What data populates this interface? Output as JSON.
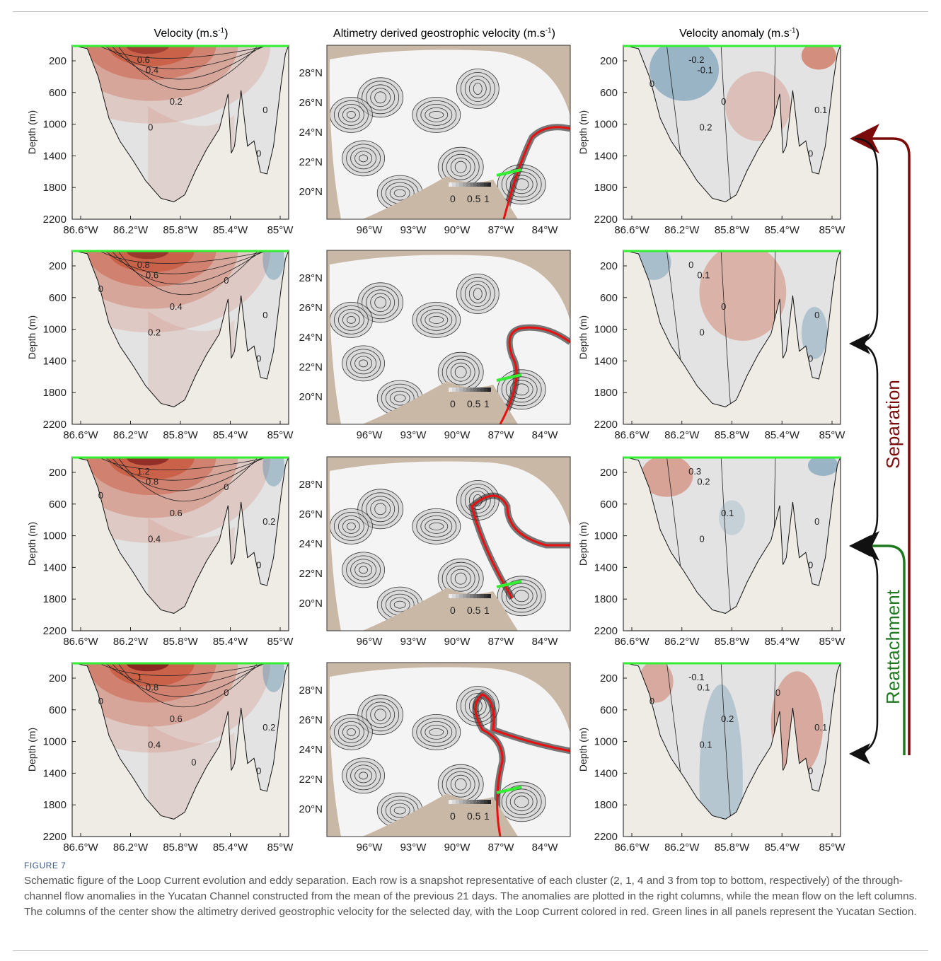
{
  "titles": {
    "left": "Velocity (m.s",
    "center": "Altimetry derived geostrophic velocity (m.s",
    "right": "Velocity anomaly (m.s",
    "unit_sup": "-1",
    "close_paren": ")"
  },
  "ylabel": "Depth (m)",
  "depth_ticks": [
    "200",
    "600",
    "1000",
    "1400",
    "1800",
    "2200"
  ],
  "lon_ticks": [
    "86.6°W",
    "86.2°W",
    "85.8°W",
    "85.4°W",
    "85°W"
  ],
  "map_lon_ticks": [
    "96°W",
    "93°W",
    "90°W",
    "87°W",
    "84°W"
  ],
  "map_lat_ticks": [
    "28°N",
    "26°N",
    "24°N",
    "22°N",
    "20°N"
  ],
  "colorbar_ticks": [
    "0",
    "0.5",
    "1"
  ],
  "arrow_labels": {
    "separation": "Separation",
    "reattachment": "Reattachment"
  },
  "rows": [
    {
      "velocity_labels": [
        "0.6",
        "0.4",
        "0.2",
        "0",
        "0",
        "0"
      ],
      "anomaly_labels": [
        "-0.2",
        "-0.1",
        "0",
        "0.2",
        "0.1",
        "0",
        "0"
      ]
    },
    {
      "velocity_labels": [
        "0.8",
        "0.6",
        "0.4",
        "0.2",
        "0",
        "0",
        "0",
        "0"
      ],
      "anomaly_labels": [
        "0",
        "0.1",
        "0",
        "0",
        "0",
        "0"
      ]
    },
    {
      "velocity_labels": [
        "1.2",
        "0.8",
        "0.6",
        "0.4",
        "0.2",
        "0",
        "0",
        "0"
      ],
      "anomaly_labels": [
        "0.3",
        "0.2",
        "0.1",
        "0",
        "0",
        "0"
      ]
    },
    {
      "velocity_labels": [
        "1",
        "0.8",
        "0.6",
        "0.4",
        "0.2",
        "0",
        "0",
        "0",
        "0"
      ],
      "anomaly_labels": [
        "-0.1",
        "0.1",
        "0.2",
        "0.1",
        "0.1",
        "0",
        "0",
        "0"
      ]
    }
  ],
  "colors": {
    "positive": "#c8553a",
    "negative": "#4f86a8",
    "neutral": "#e3e3e3",
    "land": "#efece6",
    "map_land": "#c9b8a6",
    "section": "#33ee33",
    "loop_current": "#e81010",
    "separation_arrow": "#7b0a0a",
    "reattachment_arrow": "#1f7a1f"
  },
  "caption": {
    "label": "FIGURE 7",
    "text": "Schematic figure of the Loop Current evolution and eddy separation. Each row is a snapshot representative of each cluster (2, 1, 4 and 3 from top to bottom, respectively) of the through-channel flow anomalies in the Yucatan Channel constructed from the mean of the previous 21 days. The anomalies are plotted in the right columns, while the mean flow on the left columns. The columns of the center show the altimetry derived geostrophic velocity for the selected day, with the Loop Current colored in red. Green lines in all panels represent the Yucatan Section."
  }
}
